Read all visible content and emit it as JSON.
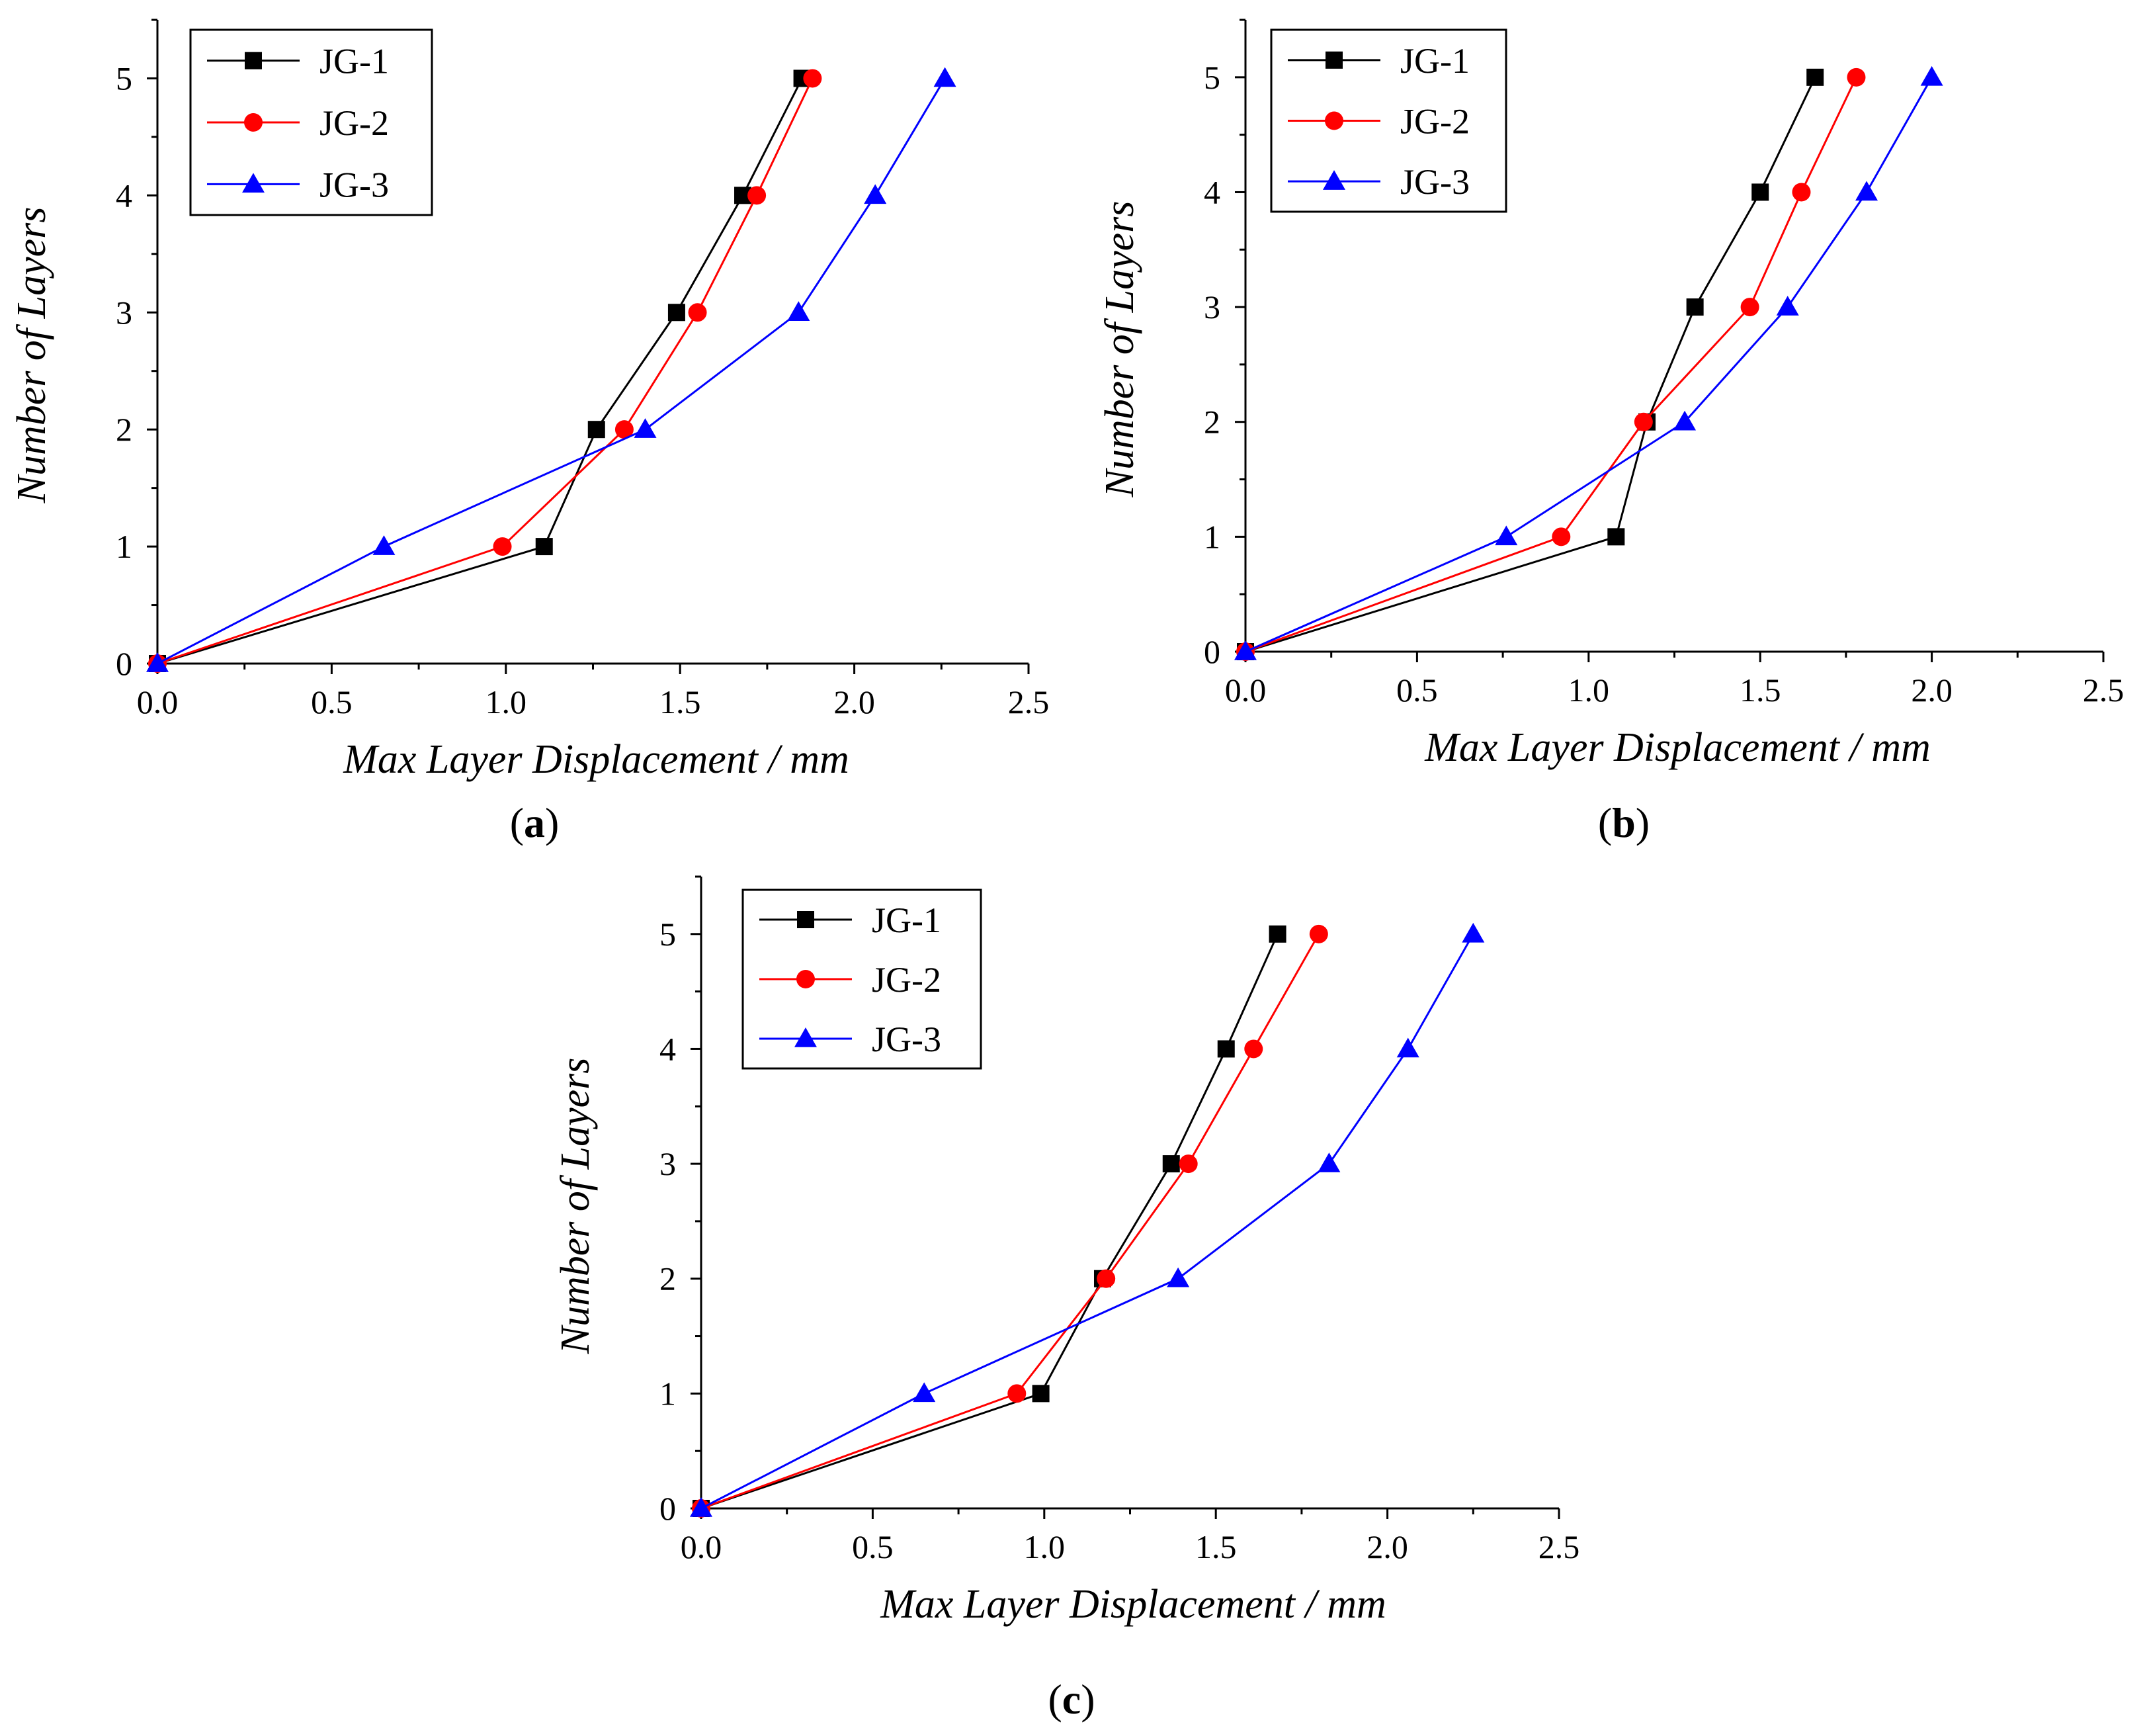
{
  "figure": {
    "colors": {
      "JG-1": "#000000",
      "JG-2": "#ff0000",
      "JG-3": "#0000ff",
      "axis": "#000000",
      "background": "#ffffff"
    },
    "marker_icons": {
      "JG-1": "square-marker-icon",
      "JG-2": "circle-marker-icon",
      "JG-3": "triangle-marker-icon"
    }
  },
  "chart_data": [
    {
      "id": "a",
      "type": "line",
      "panel_label": "a",
      "panel_open": "(",
      "panel_close": ")",
      "xlabel": "Max Layer Displacement / mm",
      "ylabel": "Number of Layers",
      "xlim": [
        0,
        2.5
      ],
      "ylim": [
        0,
        5.5
      ],
      "xticks": [
        "0.0",
        "0.5",
        "1.0",
        "1.5",
        "2.0",
        "2.5"
      ],
      "yticks": [
        "0",
        "1",
        "2",
        "3",
        "4",
        "5"
      ],
      "legend_position": "top-left",
      "series": [
        {
          "name": "JG-1",
          "x": [
            0,
            1.11,
            1.26,
            1.49,
            1.68,
            1.85
          ],
          "y": [
            0,
            1,
            2,
            3,
            4,
            5
          ]
        },
        {
          "name": "JG-2",
          "x": [
            0,
            0.99,
            1.34,
            1.55,
            1.72,
            1.88
          ],
          "y": [
            0,
            1,
            2,
            3,
            4,
            5
          ]
        },
        {
          "name": "JG-3",
          "x": [
            0,
            0.65,
            1.4,
            1.84,
            2.06,
            2.26
          ],
          "y": [
            0,
            1,
            2,
            3,
            4,
            5
          ]
        }
      ]
    },
    {
      "id": "b",
      "type": "line",
      "panel_label": "b",
      "panel_open": "(",
      "panel_close": ")",
      "xlabel": "Max Layer Displacement / mm",
      "ylabel": "Number of Layers",
      "xlim": [
        0,
        2.5
      ],
      "ylim": [
        0,
        5.5
      ],
      "xticks": [
        "0.0",
        "0.5",
        "1.0",
        "1.5",
        "2.0",
        "2.5"
      ],
      "yticks": [
        "0",
        "1",
        "2",
        "3",
        "4",
        "5"
      ],
      "legend_position": "top-left",
      "series": [
        {
          "name": "JG-1",
          "x": [
            0,
            1.08,
            1.17,
            1.31,
            1.5,
            1.66
          ],
          "y": [
            0,
            1,
            2,
            3,
            4,
            5
          ]
        },
        {
          "name": "JG-2",
          "x": [
            0,
            0.92,
            1.16,
            1.47,
            1.62,
            1.78
          ],
          "y": [
            0,
            1,
            2,
            3,
            4,
            5
          ]
        },
        {
          "name": "JG-3",
          "x": [
            0,
            0.76,
            1.28,
            1.58,
            1.81,
            2.0
          ],
          "y": [
            0,
            1,
            2,
            3,
            4,
            5
          ]
        }
      ]
    },
    {
      "id": "c",
      "type": "line",
      "panel_label": "c",
      "panel_open": "(",
      "panel_close": ")",
      "xlabel": "Max Layer Displacement / mm",
      "ylabel": "Number of Layers",
      "xlim": [
        0,
        2.5
      ],
      "ylim": [
        0,
        5.5
      ],
      "xticks": [
        "0.0",
        "0.5",
        "1.0",
        "1.5",
        "2.0",
        "2.5"
      ],
      "yticks": [
        "0",
        "1",
        "2",
        "3",
        "4",
        "5"
      ],
      "legend_position": "top-left",
      "series": [
        {
          "name": "JG-1",
          "x": [
            0,
            0.99,
            1.17,
            1.37,
            1.53,
            1.68
          ],
          "y": [
            0,
            1,
            2,
            3,
            4,
            5
          ]
        },
        {
          "name": "JG-2",
          "x": [
            0,
            0.92,
            1.18,
            1.42,
            1.61,
            1.8
          ],
          "y": [
            0,
            1,
            2,
            3,
            4,
            5
          ]
        },
        {
          "name": "JG-3",
          "x": [
            0,
            0.65,
            1.39,
            1.83,
            2.06,
            2.25
          ],
          "y": [
            0,
            1,
            2,
            3,
            4,
            5
          ]
        }
      ]
    }
  ]
}
